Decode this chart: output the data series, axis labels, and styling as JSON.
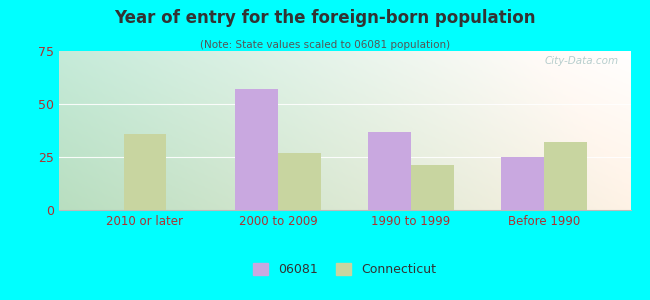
{
  "title": "Year of entry for the foreign-born population",
  "subtitle": "(Note: State values scaled to 06081 population)",
  "categories": [
    "2010 or later",
    "2000 to 2009",
    "1990 to 1999",
    "Before 1990"
  ],
  "values_06081": [
    0,
    57,
    37,
    25
  ],
  "values_connecticut": [
    36,
    27,
    21,
    32
  ],
  "color_06081": "#c9a8e0",
  "color_connecticut": "#c8d5a0",
  "ylim": [
    0,
    75
  ],
  "yticks": [
    0,
    25,
    50,
    75
  ],
  "legend_labels": [
    "06081",
    "Connecticut"
  ],
  "background_color": "#00ffff",
  "title_color": "#333333",
  "subtitle_color": "#555555",
  "tick_color": "#aa3333",
  "axis_label_color": "#aa3333",
  "watermark": "City-Data.com",
  "bar_width": 0.32
}
